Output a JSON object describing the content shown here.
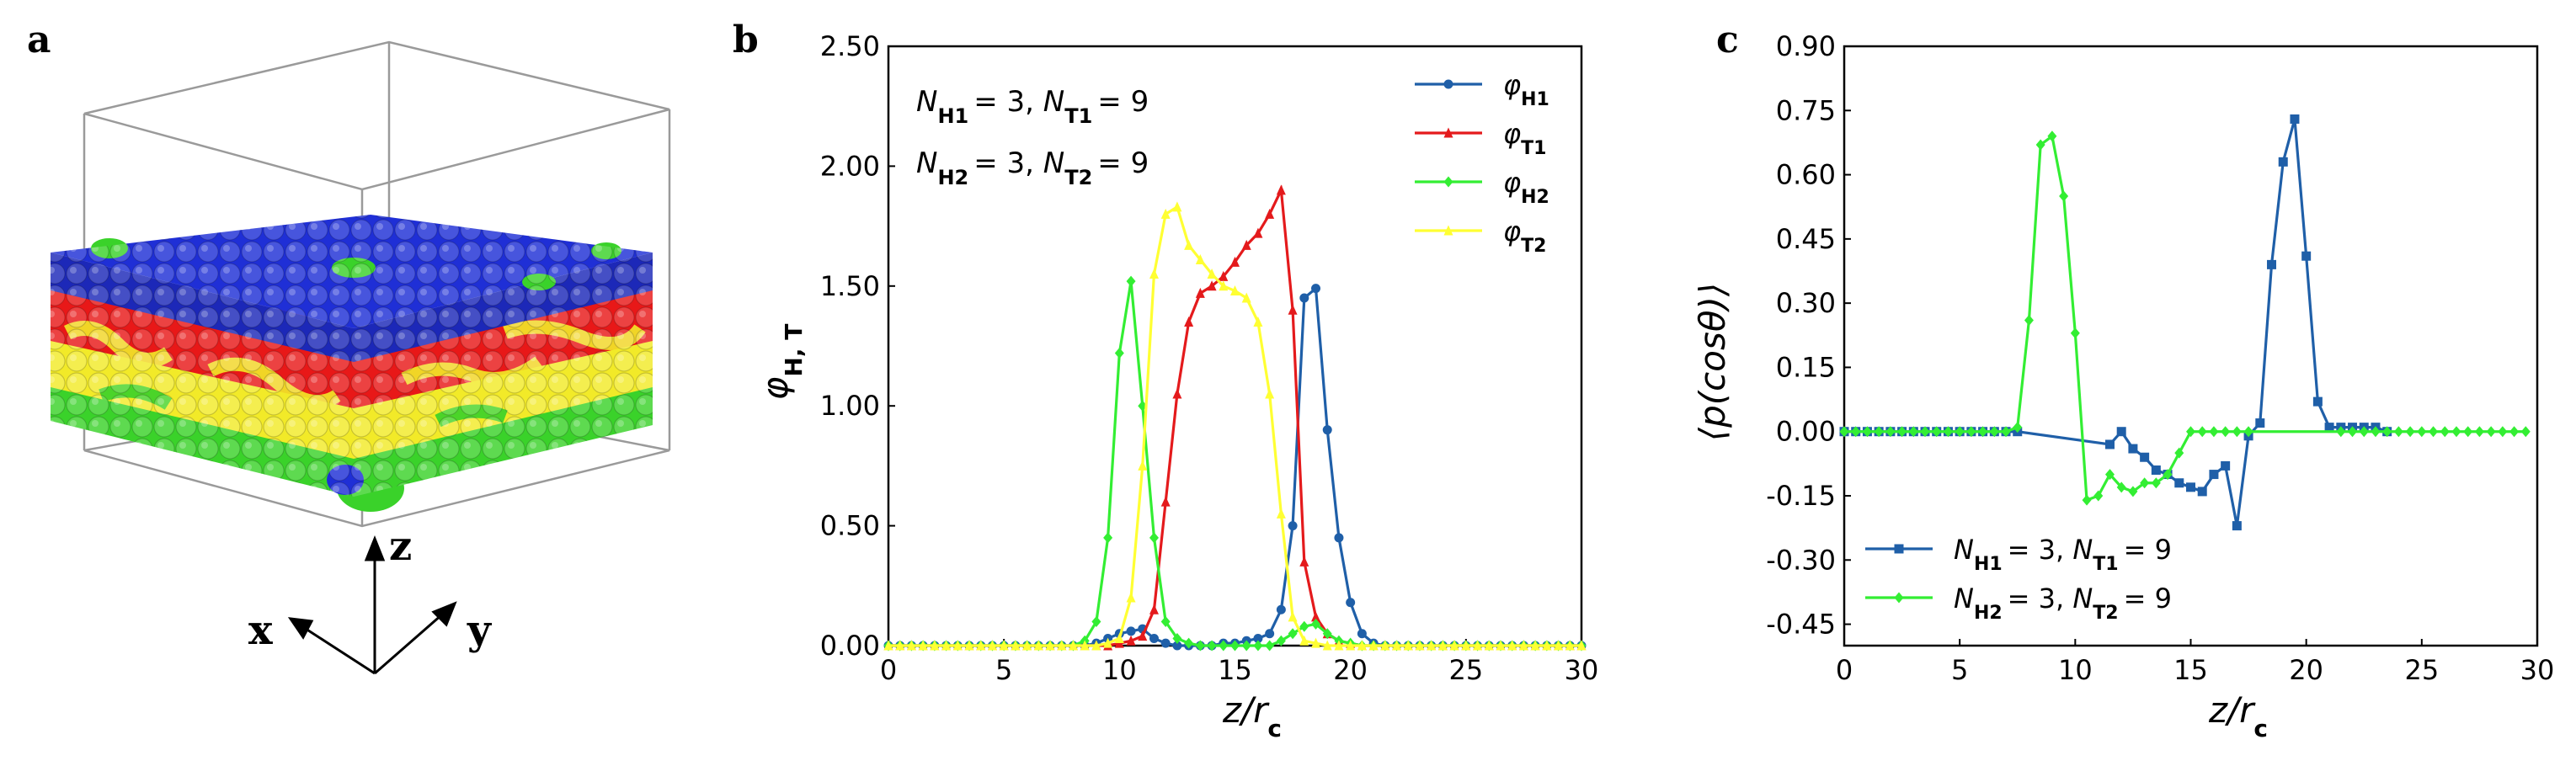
{
  "panels": {
    "a": {
      "letter": "a",
      "axes": {
        "x": "x",
        "y": "y",
        "z": "z"
      },
      "colors": {
        "head1": "#1f2fd6",
        "tail1": "#e81818",
        "head2": "#3ad22a",
        "tail2": "#f2ea28"
      }
    },
    "b": {
      "letter": "b"
    },
    "c": {
      "letter": "c"
    }
  },
  "chart_data": [
    {
      "type": "line",
      "panel": "b",
      "xlabel": "z/r",
      "xlabel_sub": "c",
      "ylabel": "φ",
      "ylabel_sub": "H, T",
      "xlim": [
        0,
        30
      ],
      "ylim": [
        0,
        2.5
      ],
      "xticks": [
        "0",
        "5",
        "10",
        "15",
        "20",
        "25",
        "30"
      ],
      "yticks": [
        "0.00",
        "0.50",
        "1.00",
        "1.50",
        "2.00",
        "2.50"
      ],
      "annotation": [
        {
          "a": "N",
          "a_sub": "H1",
          "b": "= 3, ",
          "c": "N",
          "c_sub": "T1",
          "d": "= 9"
        },
        {
          "a": "N",
          "a_sub": "H2",
          "b": "= 3, ",
          "c": "N",
          "c_sub": "T2",
          "d": "= 9"
        }
      ],
      "legend_position": "top-right",
      "x": [
        0,
        0.5,
        1,
        1.5,
        2,
        2.5,
        3,
        3.5,
        4,
        4.5,
        5,
        5.5,
        6,
        6.5,
        7,
        7.5,
        8,
        8.5,
        9,
        9.5,
        10,
        10.5,
        11,
        11.5,
        12,
        12.5,
        13,
        13.5,
        14,
        14.5,
        15,
        15.5,
        16,
        16.5,
        17,
        17.5,
        18,
        18.5,
        19,
        19.5,
        20,
        20.5,
        21,
        21.5,
        22,
        22.5,
        23,
        23.5,
        24,
        24.5,
        25,
        25.5,
        26,
        26.5,
        27,
        27.5,
        28,
        28.5,
        29,
        29.5,
        30
      ],
      "series": [
        {
          "name": "φ",
          "name_sub": "H1",
          "color": "#1f5fa8",
          "marker": "circle",
          "values": [
            0,
            0,
            0,
            0,
            0,
            0,
            0,
            0,
            0,
            0,
            0,
            0,
            0,
            0,
            0,
            0,
            0,
            0,
            0.01,
            0.03,
            0.05,
            0.06,
            0.07,
            0.03,
            0.01,
            0,
            0,
            0,
            0,
            0.01,
            0.01,
            0.02,
            0.03,
            0.05,
            0.15,
            0.5,
            1.45,
            1.49,
            0.9,
            0.45,
            0.18,
            0.05,
            0.01,
            0,
            0,
            0,
            0,
            0,
            0,
            0,
            0,
            0,
            0,
            0,
            0,
            0,
            0,
            0,
            0,
            0,
            0
          ]
        },
        {
          "name": "φ",
          "name_sub": "T1",
          "color": "#e41a1c",
          "marker": "triangle",
          "values": [
            0,
            0,
            0,
            0,
            0,
            0,
            0,
            0,
            0,
            0,
            0,
            0,
            0,
            0,
            0,
            0,
            0,
            0,
            0,
            0,
            0.01,
            0.02,
            0.04,
            0.15,
            0.6,
            1.05,
            1.35,
            1.47,
            1.5,
            1.54,
            1.6,
            1.67,
            1.72,
            1.8,
            1.9,
            1.4,
            0.35,
            0.12,
            0.05,
            0.02,
            0.01,
            0,
            0,
            0,
            0,
            0,
            0,
            0,
            0,
            0,
            0,
            0,
            0,
            0,
            0,
            0,
            0,
            0,
            0,
            0,
            0
          ]
        },
        {
          "name": "φ",
          "name_sub": "H2",
          "color": "#33ee33",
          "marker": "diamond",
          "values": [
            0,
            0,
            0,
            0,
            0,
            0,
            0,
            0,
            0,
            0,
            0,
            0,
            0,
            0,
            0,
            0,
            0,
            0.02,
            0.1,
            0.45,
            1.22,
            1.52,
            1.0,
            0.45,
            0.1,
            0.03,
            0.01,
            0,
            0,
            0,
            0,
            0,
            0,
            0,
            0.02,
            0.05,
            0.08,
            0.09,
            0.05,
            0.02,
            0.01,
            0,
            0,
            0,
            0,
            0,
            0,
            0,
            0,
            0,
            0,
            0,
            0,
            0,
            0,
            0,
            0,
            0,
            0,
            0,
            0
          ]
        },
        {
          "name": "φ",
          "name_sub": "T2",
          "color": "#ffff33",
          "marker": "triangle",
          "values": [
            0,
            0,
            0,
            0,
            0,
            0,
            0,
            0,
            0,
            0,
            0,
            0,
            0,
            0,
            0,
            0,
            0,
            0,
            0,
            0.01,
            0.03,
            0.2,
            0.75,
            1.55,
            1.8,
            1.83,
            1.67,
            1.61,
            1.55,
            1.5,
            1.48,
            1.45,
            1.35,
            1.05,
            0.55,
            0.12,
            0.02,
            0.01,
            0,
            0,
            0,
            0,
            0,
            0,
            0,
            0,
            0,
            0,
            0,
            0,
            0,
            0,
            0,
            0,
            0,
            0,
            0,
            0,
            0,
            0,
            0
          ]
        }
      ]
    },
    {
      "type": "line",
      "panel": "c",
      "xlabel": "z/r",
      "xlabel_sub": "c",
      "ylabel": "⟨p(cosθ)⟩",
      "xlim": [
        0,
        30
      ],
      "ylim": [
        -0.5,
        0.9
      ],
      "xticks": [
        "0",
        "5",
        "10",
        "15",
        "20",
        "25",
        "30"
      ],
      "yticks": [
        "0.90",
        "0.75",
        "0.60",
        "0.45",
        "0.30",
        "0.15",
        "0.00",
        "-0.15",
        "-0.30",
        "-0.45"
      ],
      "legend_position": "bottom-left",
      "series": [
        {
          "name_parts": {
            "a": "N",
            "a_sub": "H1",
            "b": "= 3, ",
            "c": "N",
            "c_sub": "T1",
            "d": "= 9"
          },
          "color": "#1f5fa8",
          "marker": "square",
          "x": [
            0,
            0.5,
            1,
            1.5,
            2,
            2.5,
            3,
            3.5,
            4,
            4.5,
            5,
            5.5,
            6,
            6.5,
            7,
            7.5,
            11.5,
            12,
            12.5,
            13,
            13.5,
            14,
            14.5,
            15,
            15.5,
            16,
            16.5,
            17,
            17.5,
            18,
            18.5,
            19,
            19.5,
            20,
            20.5,
            21,
            21.5,
            22,
            22.5,
            23,
            23.5
          ],
          "y": [
            0,
            0,
            0,
            0,
            0,
            0,
            0,
            0,
            0,
            0,
            0,
            0,
            0,
            0,
            0,
            0,
            -0.03,
            0,
            -0.04,
            -0.06,
            -0.09,
            -0.1,
            -0.12,
            -0.13,
            -0.14,
            -0.1,
            -0.08,
            -0.22,
            -0.01,
            0.02,
            0.39,
            0.63,
            0.73,
            0.41,
            0.07,
            0.01,
            0.01,
            0.01,
            0.01,
            0.01,
            0
          ]
        },
        {
          "name_parts": {
            "a": "N",
            "a_sub": "H2",
            "b": "= 3, ",
            "c": "N",
            "c_sub": "T2",
            "d": "= 9"
          },
          "color": "#33ee33",
          "marker": "diamond",
          "x": [
            0,
            0.5,
            1,
            1.5,
            2,
            2.5,
            3,
            3.5,
            4,
            4.5,
            5,
            5.5,
            6,
            6.5,
            7,
            7.5,
            8,
            8.5,
            9,
            9.5,
            10,
            10.5,
            11,
            11.5,
            12,
            12.5,
            13,
            13.5,
            14,
            14.5,
            15,
            15.5,
            16,
            16.5,
            17,
            17.5,
            21.5,
            22,
            22.5,
            23,
            23.5,
            24,
            24.5,
            25,
            25.5,
            26,
            26.5,
            27,
            27.5,
            28,
            28.5,
            29,
            29.5
          ],
          "y": [
            0,
            0,
            0,
            0,
            0,
            0,
            0,
            0,
            0,
            0,
            0,
            0,
            0,
            0,
            0,
            0.01,
            0.26,
            0.67,
            0.69,
            0.55,
            0.23,
            -0.16,
            -0.15,
            -0.1,
            -0.13,
            -0.14,
            -0.12,
            -0.12,
            -0.1,
            -0.05,
            0,
            0,
            0,
            0,
            0,
            0,
            0,
            0,
            0,
            0,
            0,
            0,
            0,
            0,
            0,
            0,
            0,
            0,
            0,
            0,
            0,
            0,
            0
          ]
        }
      ]
    }
  ]
}
